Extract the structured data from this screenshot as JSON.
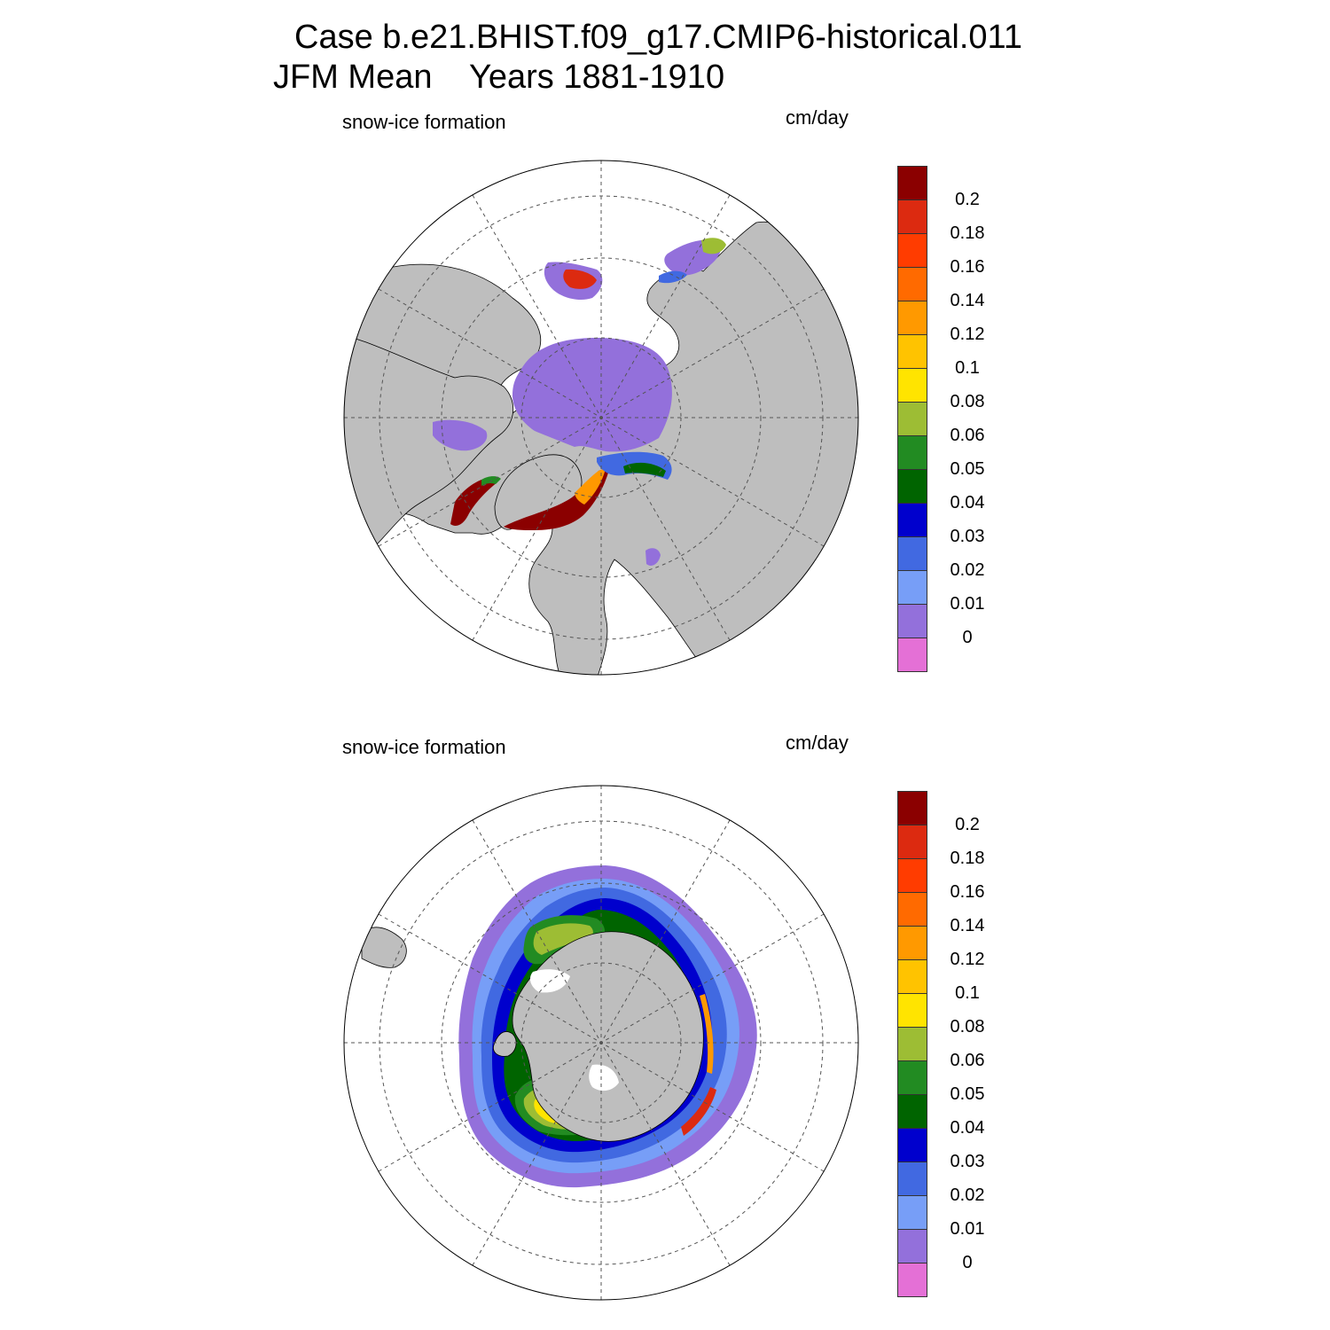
{
  "title": {
    "line1": "Case b.e21.BHIST.f09_g17.CMIP6-historical.011",
    "line2": "JFM Mean    Years 1881-1910"
  },
  "panels": [
    {
      "id": "north",
      "left_label": "snow-ice formation",
      "right_label": "cm/day",
      "hemisphere": "Northern Hemisphere polar stereographic"
    },
    {
      "id": "south",
      "left_label": "snow-ice formation",
      "right_label": "cm/day",
      "hemisphere": "Southern Hemisphere polar stereographic"
    }
  ],
  "colorbar": {
    "ticks": [
      "0.2",
      "0.18",
      "0.16",
      "0.14",
      "0.12",
      "0.1",
      "0.08",
      "0.06",
      "0.05",
      "0.04",
      "0.03",
      "0.02",
      "0.01",
      "0"
    ],
    "colors": [
      "#8b0000",
      "#dc2a10",
      "#ff3c00",
      "#ff6a00",
      "#ff9900",
      "#ffc300",
      "#ffe400",
      "#9dbd34",
      "#228b22",
      "#006400",
      "#0000cd",
      "#4169e1",
      "#779ef7",
      "#9370db",
      "#e470d6"
    ]
  },
  "map_colors": {
    "land": "#bebebe",
    "ocean": "#ffffff",
    "grid": "#555555"
  }
}
